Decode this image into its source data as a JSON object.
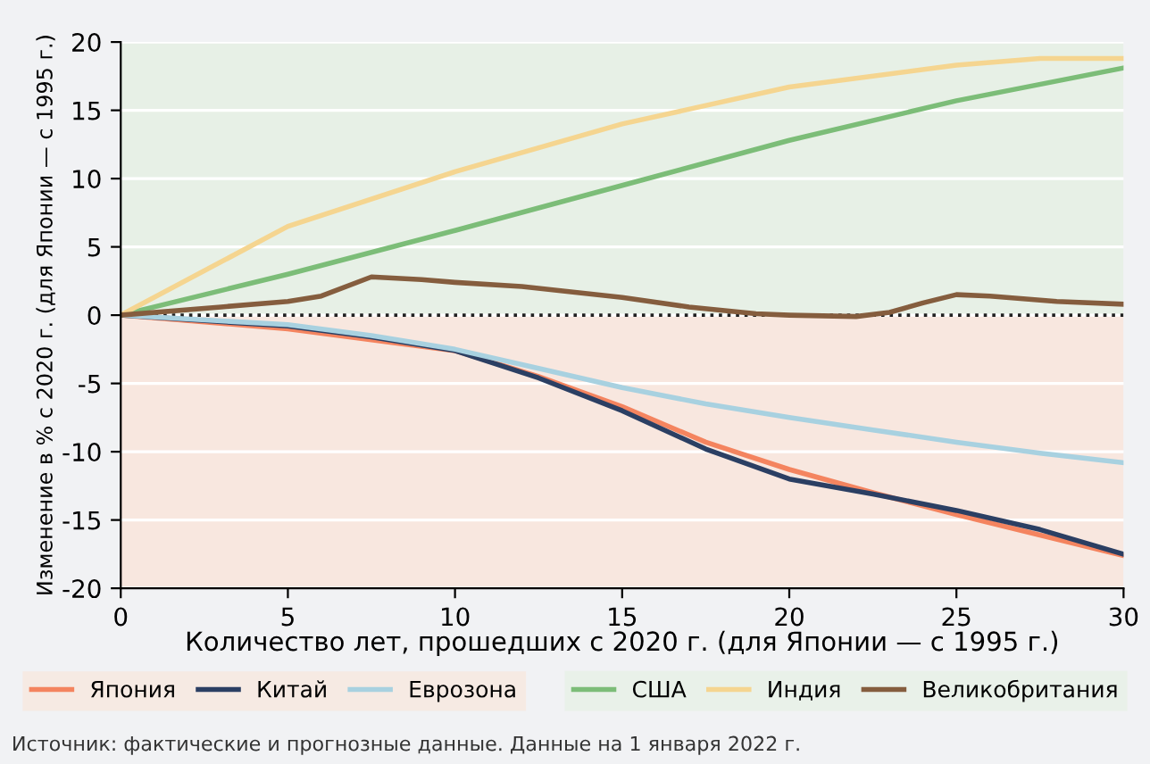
{
  "chart_data": {
    "type": "line",
    "xlabel": "Количество лет, прошедших с 2020 г. (для Японии — с 1995 г.)",
    "ylabel": "Изменение в % с 2020 г. (для Японии — с 1995 г.)",
    "xlim": [
      0,
      30
    ],
    "xticks": [
      0,
      5,
      10,
      15,
      20,
      25,
      30
    ],
    "ylim": [
      -20,
      20
    ],
    "yticks": [
      -20,
      -15,
      -10,
      -5,
      0,
      5,
      10,
      15,
      20
    ],
    "grid": "y",
    "legend": "bottom",
    "line_style": "solid",
    "marker": "none",
    "bands": [
      {
        "axis": "y",
        "from": 0,
        "to": 20,
        "color": "#e7f0e6"
      },
      {
        "axis": "y",
        "from": -20,
        "to": 0,
        "color": "#f8e7df"
      }
    ],
    "ref_lines": [
      {
        "axis": "y",
        "value": 0,
        "color": "#222222",
        "line_style": "dotted"
      }
    ],
    "series": [
      {
        "name": "Япония",
        "color": "#f4845f",
        "x": [
          0,
          5,
          7.5,
          10,
          12.5,
          15,
          17.5,
          20,
          22.5,
          25,
          27.5,
          30
        ],
        "values": [
          0,
          -1,
          -1.8,
          -2.6,
          -4.5,
          -6.7,
          -9.3,
          -11.3,
          -13,
          -14.6,
          -16.1,
          -17.6
        ]
      },
      {
        "name": "Китай",
        "color": "#2b3f63",
        "x": [
          0,
          5,
          7.5,
          10,
          12.5,
          15,
          17.5,
          20,
          22.5,
          25,
          27.5,
          30
        ],
        "values": [
          0,
          -0.8,
          -1.6,
          -2.6,
          -4.6,
          -7,
          -9.8,
          -12,
          -13.1,
          -14.3,
          -15.7,
          -17.5
        ]
      },
      {
        "name": "Еврозона",
        "color": "#a8d1e0",
        "x": [
          0,
          5,
          7.5,
          10,
          12.5,
          15,
          17.5,
          20,
          22.5,
          25,
          27.5,
          30
        ],
        "values": [
          0,
          -0.7,
          -1.5,
          -2.5,
          -3.9,
          -5.3,
          -6.5,
          -7.5,
          -8.4,
          -9.3,
          -10.1,
          -10.8
        ]
      },
      {
        "name": "США",
        "color": "#7cbd78",
        "x": [
          0,
          5,
          10,
          15,
          20,
          25,
          30
        ],
        "values": [
          0,
          3,
          6.2,
          9.5,
          12.8,
          15.7,
          18.1
        ]
      },
      {
        "name": "Индия",
        "color": "#f5d590",
        "x": [
          0,
          5,
          10,
          15,
          20,
          25,
          27.5,
          30
        ],
        "values": [
          0,
          6.5,
          10.5,
          14,
          16.7,
          18.3,
          18.8,
          18.8
        ]
      },
      {
        "name": "Великобритания",
        "color": "#855d3e",
        "x": [
          0,
          3,
          5,
          6,
          7.5,
          9,
          10,
          12,
          15,
          17,
          19,
          20,
          22,
          23,
          24,
          25,
          26,
          28,
          30
        ],
        "values": [
          0,
          0.6,
          1,
          1.4,
          2.8,
          2.6,
          2.4,
          2.1,
          1.3,
          0.6,
          0.1,
          0,
          -0.1,
          0.2,
          0.9,
          1.5,
          1.4,
          1,
          0.8
        ]
      }
    ],
    "annotations": [
      "Источник: фактические и прогнозные данные. Данные на 1 января 2022 г."
    ]
  }
}
